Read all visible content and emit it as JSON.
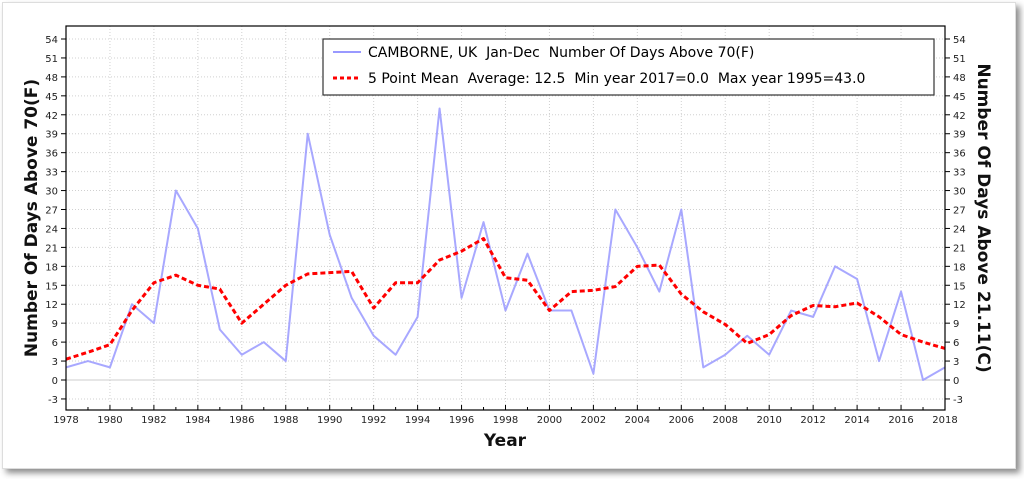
{
  "chart_data": {
    "type": "line",
    "xlabel": "Year",
    "ylabel": "Number Of Days Above 70(F)",
    "ylabel_right": "Number Of Days Above 21.11(C)",
    "xlim": [
      1978,
      2018
    ],
    "ylim": [
      -3,
      54
    ],
    "x_ticks": [
      1978,
      1980,
      1982,
      1984,
      1986,
      1988,
      1990,
      1992,
      1994,
      1996,
      1998,
      2000,
      2002,
      2004,
      2006,
      2008,
      2010,
      2012,
      2014,
      2016,
      2018
    ],
    "y_ticks": [
      -3,
      0,
      3,
      6,
      9,
      12,
      15,
      18,
      21,
      24,
      27,
      30,
      33,
      36,
      39,
      42,
      45,
      48,
      51,
      54
    ],
    "grid": true,
    "legend_position": "top-right",
    "x": [
      1978,
      1979,
      1980,
      1981,
      1982,
      1983,
      1984,
      1985,
      1986,
      1987,
      1988,
      1989,
      1990,
      1991,
      1992,
      1993,
      1994,
      1995,
      1996,
      1997,
      1998,
      1999,
      2000,
      2001,
      2002,
      2003,
      2004,
      2005,
      2006,
      2007,
      2008,
      2009,
      2010,
      2011,
      2012,
      2013,
      2014,
      2015,
      2016,
      2017,
      2018
    ],
    "series": [
      {
        "name": "CAMBORNE, UK  Jan-Dec  Number Of Days Above 70(F)",
        "color": "#9999ff",
        "style": "solid",
        "values": [
          2,
          3,
          2,
          12,
          9,
          30,
          24,
          8,
          4,
          6,
          3,
          39,
          23,
          13,
          7,
          4,
          10,
          43,
          13,
          25,
          11,
          20,
          11,
          11,
          1,
          27,
          21,
          14,
          27,
          2,
          4,
          7,
          4,
          11,
          10,
          18,
          16,
          3,
          14,
          0,
          2
        ]
      },
      {
        "name": "5 Point Mean  Average: 12.5  Min year 2017=0.0  Max year 1995=43.0",
        "color": "#ff0000",
        "style": "dashed",
        "values": [
          3.3,
          4.4,
          5.6,
          11,
          15.4,
          16.6,
          15,
          14.4,
          9,
          12,
          15,
          16.8,
          17,
          17.2,
          11.4,
          15.4,
          15.4,
          19,
          20.4,
          22.4,
          16.2,
          15.8,
          11,
          14,
          14.2,
          14.8,
          18,
          18.2,
          13.6,
          10.8,
          8.8,
          5.8,
          7.2,
          10.2,
          11.8,
          11.6,
          12.2,
          10,
          7.2,
          6,
          5
        ]
      }
    ]
  }
}
